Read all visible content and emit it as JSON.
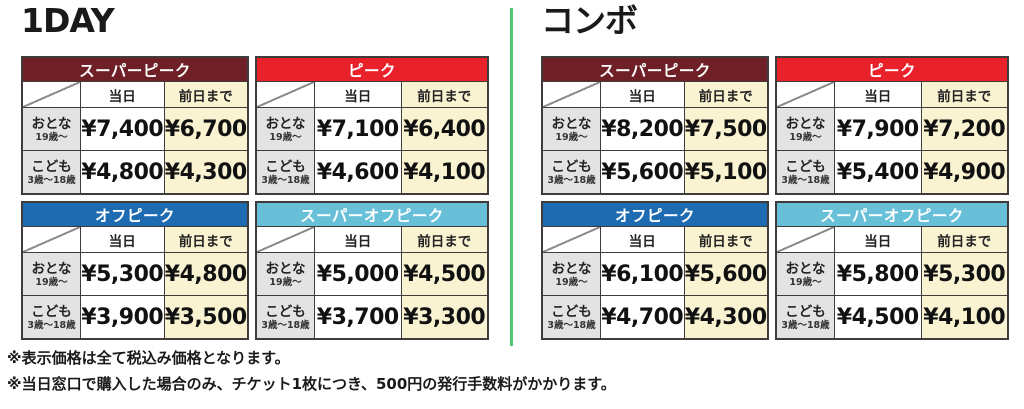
{
  "sections": [
    {
      "title": "1DAY",
      "tables": [
        {
          "title": "スーパーピーク",
          "cols": {
            "c1": "当日",
            "c2": "前日まで"
          },
          "rows": [
            {
              "label": "おとな",
              "sub": "19歳〜",
              "p1": "¥7,400",
              "p2": "¥6,700"
            },
            {
              "label": "こども",
              "sub": "3歳〜18歳",
              "p1": "¥4,800",
              "p2": "¥4,300"
            }
          ]
        },
        {
          "title": "ピーク",
          "cols": {
            "c1": "当日",
            "c2": "前日まで"
          },
          "rows": [
            {
              "label": "おとな",
              "sub": "19歳〜",
              "p1": "¥7,100",
              "p2": "¥6,400"
            },
            {
              "label": "こども",
              "sub": "3歳〜18歳",
              "p1": "¥4,600",
              "p2": "¥4,100"
            }
          ]
        },
        {
          "title": "オフピーク",
          "cols": {
            "c1": "当日",
            "c2": "前日まで"
          },
          "rows": [
            {
              "label": "おとな",
              "sub": "19歳〜",
              "p1": "¥5,300",
              "p2": "¥4,800"
            },
            {
              "label": "こども",
              "sub": "3歳〜18歳",
              "p1": "¥3,900",
              "p2": "¥3,500"
            }
          ]
        },
        {
          "title": "スーパーオフピーク",
          "cols": {
            "c1": "当日",
            "c2": "前日まで"
          },
          "rows": [
            {
              "label": "おとな",
              "sub": "19歳〜",
              "p1": "¥5,000",
              "p2": "¥4,500"
            },
            {
              "label": "こども",
              "sub": "3歳〜18歳",
              "p1": "¥3,700",
              "p2": "¥3,300"
            }
          ]
        }
      ]
    },
    {
      "title": "コンボ",
      "tables": [
        {
          "title": "スーパーピーク",
          "cols": {
            "c1": "当日",
            "c2": "前日まで"
          },
          "rows": [
            {
              "label": "おとな",
              "sub": "19歳〜",
              "p1": "¥8,200",
              "p2": "¥7,500"
            },
            {
              "label": "こども",
              "sub": "3歳〜18歳",
              "p1": "¥5,600",
              "p2": "¥5,100"
            }
          ]
        },
        {
          "title": "ピーク",
          "cols": {
            "c1": "当日",
            "c2": "前日まで"
          },
          "rows": [
            {
              "label": "おとな",
              "sub": "19歳〜",
              "p1": "¥7,900",
              "p2": "¥7,200"
            },
            {
              "label": "こども",
              "sub": "3歳〜18歳",
              "p1": "¥5,400",
              "p2": "¥4,900"
            }
          ]
        },
        {
          "title": "オフピーク",
          "cols": {
            "c1": "当日",
            "c2": "前日まで"
          },
          "rows": [
            {
              "label": "おとな",
              "sub": "19歳〜",
              "p1": "¥6,100",
              "p2": "¥5,600"
            },
            {
              "label": "こども",
              "sub": "3歳〜18歳",
              "p1": "¥4,700",
              "p2": "¥4,300"
            }
          ]
        },
        {
          "title": "スーパーオフピーク",
          "cols": {
            "c1": "当日",
            "c2": "前日まで"
          },
          "rows": [
            {
              "label": "おとな",
              "sub": "19歳〜",
              "p1": "¥5,800",
              "p2": "¥5,300"
            },
            {
              "label": "こども",
              "sub": "3歳〜18歳",
              "p1": "¥4,500",
              "p2": "¥4,100"
            }
          ]
        }
      ]
    }
  ],
  "notes": [
    "※表示価格は全て税込み価格となります。",
    "※当日窓口で購入した場合のみ、チケット1枚につき、500円の発行手数料がかかります。"
  ],
  "colors": {
    "super_peak_header": "#6f2026",
    "peak_header": "#e8212a",
    "off_peak_header": "#1e6bb2",
    "super_off_peak_header": "#68c0d8",
    "advance_column_bg": "#faf3d2",
    "row_label_bg": "#e3e3e3",
    "divider_green": "#4fc874",
    "table_border": "#403c3b"
  }
}
